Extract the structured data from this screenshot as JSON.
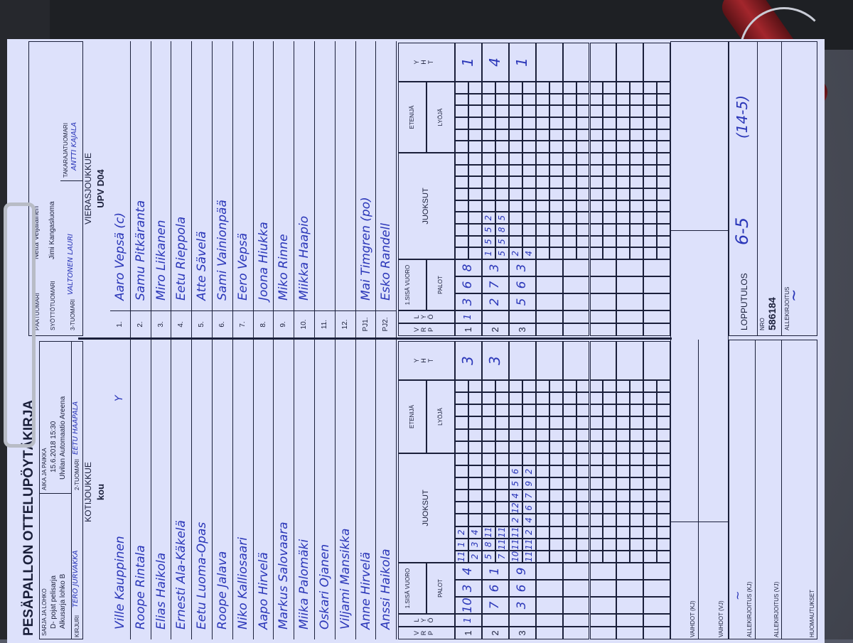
{
  "colors": {
    "paper": "#dde1fb",
    "ink": "#2a36b8",
    "print": "#1a1f3a"
  },
  "header": {
    "title": "PESÄPALLON OTTELUPÖYTÄKIRJA",
    "series_label": "SARJA JA LOHKO",
    "series_line1": "D- pojat pelisarja",
    "series_line2": "Alkusarja lohko B",
    "time_label": "AIKA JA PAIKKA",
    "time_line1": "15.6.2018 15:30",
    "time_line2": "Ulvilan Automaatio Areena",
    "scorer_label": "KIRJURI",
    "scorer": "TERO JURVAKKA",
    "ump2_label": "2-TUOMARI",
    "ump2": "EETU HAAPALA",
    "head_ump_label": "PÄÄTUOMARI",
    "head_ump": "Netta Veijalainen",
    "pitch_ump_label": "SYÖTTÖTUOMARI",
    "pitch_ump": "Jimi Kangasluoma",
    "ump3_label": "3-TUOMARI",
    "ump3": "VALTONEN LAURI",
    "back_ump_label": "TAKARAJATUOMARI",
    "back_ump": "ANTTI KAJALA"
  },
  "home": {
    "label": "KOTIJOUKKUE",
    "name": "kou",
    "mark": "Y",
    "players": [
      "Ville Kauppinen",
      "Roope Rintala",
      "Elias Haikola",
      "Ernesti Ala-Käkelä",
      "Eetu Luoma-Opas",
      "Roope Jalava",
      "Niko Kalliosaari",
      "Aapo Hirvelä",
      "Markus Salovaara",
      "Miika Palomäki",
      "Oskari Ojanen",
      "Viljami Mansikka",
      "Anne Hirvelä",
      "Anssi Haikola"
    ]
  },
  "away": {
    "label": "VIERASJOUKKUE",
    "name": "UPV D04",
    "numbers": [
      "1.",
      "2.",
      "3.",
      "4.",
      "5.",
      "6.",
      "7.",
      "8.",
      "9.",
      "10.",
      "11.",
      "12.",
      "PJ1.",
      "PJ2."
    ],
    "players": [
      "Aaro Vepsä (c)",
      "Samu Pitkäranta",
      "Miro Liikanen",
      "Eetu Rieppola",
      "Atte Sävelä",
      "Sami Vainionpää",
      "Eero Vepsä",
      "Joona Hiukka",
      "Miko Rinne",
      "Miikka Haapio",
      "",
      "",
      "Mai Timgren (po)",
      "Esko Randell"
    ]
  },
  "grid_labels": {
    "vrp": "V R P",
    "lyo": "L Y Ö",
    "first": "1.SISÄ VUORO",
    "palot": "PALOT",
    "juoksut": "JUOKSUT",
    "etenija": "ETENIJÄ",
    "lyoja": "LYÖJÄ",
    "yht": "Y H T"
  },
  "innings": {
    "home": [
      {
        "vrp": "1",
        "lyo": "1",
        "palot": [
          "10",
          "3",
          "4"
        ],
        "top": [
          "11",
          "1",
          "2"
        ],
        "bottom": [
          "2",
          "3",
          "4"
        ],
        "yht": "3"
      },
      {
        "vrp": "2",
        "lyo": "",
        "palot": [
          "7",
          "6",
          "1"
        ],
        "top": [
          "5",
          "8",
          "11"
        ],
        "bottom": [
          "7",
          "11",
          "11"
        ],
        "yht": "3"
      },
      {
        "vrp": "3",
        "lyo": "",
        "palot": [
          "3",
          "6",
          "9"
        ],
        "top": [
          "10",
          "11",
          "11",
          "2",
          "12",
          "4",
          "5",
          "6"
        ],
        "bottom": [
          "11",
          "11",
          "2",
          "4",
          "6",
          "7",
          "9",
          "2"
        ],
        "yht": ""
      }
    ],
    "away": [
      {
        "vrp": "1",
        "lyo": "1",
        "palot": [
          "3",
          "6",
          "8"
        ],
        "top": [],
        "bottom": [],
        "yht": "1"
      },
      {
        "vrp": "2",
        "lyo": "",
        "palot": [
          "2",
          "7",
          "3"
        ],
        "top": [
          "1",
          "5",
          "5",
          "2"
        ],
        "bottom": [
          "5",
          "5",
          "8",
          "5"
        ],
        "yht": "4"
      },
      {
        "vrp": "3",
        "lyo": "",
        "palot": [
          "5",
          "6",
          "3"
        ],
        "top": [
          "2"
        ],
        "bottom": [
          "4"
        ],
        "yht": "1"
      }
    ]
  },
  "footer": {
    "subs_home": "VAIHDOT (KJ)",
    "subs_away": "VAIHDOT (VJ)",
    "sign_home": "ALLEKIRJOITUS (KJ)",
    "sign_away": "ALLEKIRJOITUS (VJ)",
    "notes": "HUOMAUTUKSET",
    "result_label": "LOPPUTULOS",
    "result": "6-5",
    "result_runs": "(14-5)",
    "nro_label": "NRO",
    "nro": "586184",
    "sign_label": "ALLEKIRJOITUS"
  }
}
